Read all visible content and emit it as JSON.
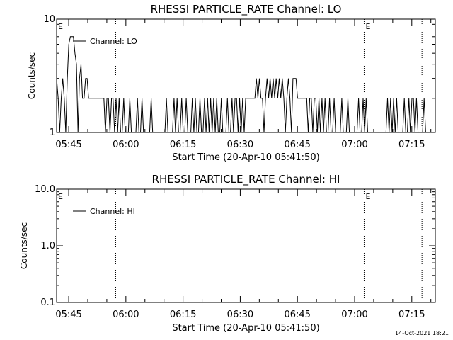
{
  "chart_data": [
    {
      "type": "line",
      "title": "RHESSI PARTICLE_RATE Channel: LO",
      "xlabel": "Start Time (20-Apr-10 05:41:50)",
      "ylabel": "Counts/sec",
      "y_scale": "log",
      "ylim": [
        1,
        10
      ],
      "y_ticks": [
        "1",
        "10"
      ],
      "xlim": [
        "05:41:50",
        "07:21:10"
      ],
      "x_ticks": [
        "05:45",
        "06:00",
        "06:15",
        "06:30",
        "06:45",
        "07:00",
        "07:15"
      ],
      "legend": "top-left",
      "grid": false,
      "vlines": [
        "05:57:20",
        "07:02:30",
        "07:17:40"
      ],
      "markers": [
        {
          "label": "E",
          "time": "05:41:50"
        },
        {
          "label": "E",
          "time": "07:02:30"
        }
      ],
      "series": [
        {
          "name": "Channel: LO",
          "points": [
            [
              "05:41:50",
              3
            ],
            [
              "05:42:14",
              2
            ],
            [
              "05:42:38",
              1
            ],
            [
              "05:43:02",
              2
            ],
            [
              "05:43:26",
              3
            ],
            [
              "05:43:50",
              2
            ],
            [
              "05:44:14",
              1
            ],
            [
              "05:44:38",
              3
            ],
            [
              "05:45:02",
              6
            ],
            [
              "05:45:26",
              7
            ],
            [
              "05:45:50",
              7
            ],
            [
              "05:46:14",
              7
            ],
            [
              "05:46:38",
              5
            ],
            [
              "05:47:02",
              4
            ],
            [
              "05:47:26",
              1
            ],
            [
              "05:47:50",
              3
            ],
            [
              "05:48:14",
              4
            ],
            [
              "05:48:38",
              2
            ],
            [
              "05:49:02",
              2
            ],
            [
              "05:49:26",
              3
            ],
            [
              "05:49:50",
              3
            ],
            [
              "05:50:14",
              2
            ],
            [
              "05:50:38",
              2
            ],
            [
              "05:51:02",
              2
            ],
            [
              "05:51:26",
              2
            ],
            [
              "05:51:50",
              2
            ],
            [
              "05:52:14",
              2
            ],
            [
              "05:52:38",
              2
            ],
            [
              "05:53:02",
              2
            ],
            [
              "05:53:26",
              2
            ],
            [
              "05:53:50",
              2
            ],
            [
              "05:54:14",
              2
            ],
            [
              "05:54:38",
              1
            ],
            [
              "05:55:02",
              2
            ],
            [
              "05:55:26",
              2
            ],
            [
              "05:55:50",
              1
            ],
            [
              "05:56:14",
              2
            ],
            [
              "05:56:38",
              2
            ],
            [
              "05:57:02",
              1
            ],
            [
              "05:57:26",
              2
            ],
            [
              "05:57:50",
              1
            ],
            [
              "05:58:14",
              2
            ],
            [
              "05:58:38",
              1
            ],
            [
              "05:59:02",
              1
            ],
            [
              "05:59:26",
              2
            ],
            [
              "05:59:50",
              1
            ],
            [
              "06:00:14",
              1
            ],
            [
              "06:00:38",
              1
            ],
            [
              "06:01:02",
              2
            ],
            [
              "06:01:26",
              1
            ],
            [
              "06:01:50",
              1
            ],
            [
              "06:02:14",
              1
            ],
            [
              "06:02:38",
              1
            ],
            [
              "06:03:02",
              2
            ],
            [
              "06:03:26",
              1
            ],
            [
              "06:03:50",
              1
            ],
            [
              "06:04:14",
              2
            ],
            [
              "06:04:38",
              1
            ],
            [
              "06:05:02",
              1
            ],
            [
              "06:05:26",
              1
            ],
            [
              "06:05:50",
              1
            ],
            [
              "06:06:14",
              1
            ],
            [
              "06:06:38",
              2
            ],
            [
              "06:07:02",
              1
            ],
            [
              "06:07:26",
              1
            ],
            [
              "06:07:50",
              1
            ],
            [
              "06:08:14",
              1
            ],
            [
              "06:08:38",
              1
            ],
            [
              "06:09:02",
              1
            ],
            [
              "06:09:26",
              1
            ],
            [
              "06:09:50",
              1
            ],
            [
              "06:10:14",
              1
            ],
            [
              "06:10:38",
              2
            ],
            [
              "06:11:02",
              1
            ],
            [
              "06:11:26",
              1
            ],
            [
              "06:11:50",
              1
            ],
            [
              "06:12:14",
              1
            ],
            [
              "06:12:38",
              2
            ],
            [
              "06:13:02",
              1
            ],
            [
              "06:13:26",
              2
            ],
            [
              "06:13:50",
              1
            ],
            [
              "06:14:14",
              1
            ],
            [
              "06:14:38",
              2
            ],
            [
              "06:15:02",
              1
            ],
            [
              "06:15:26",
              1
            ],
            [
              "06:15:50",
              2
            ],
            [
              "06:16:14",
              1
            ],
            [
              "06:16:38",
              1
            ],
            [
              "06:17:02",
              1
            ],
            [
              "06:17:26",
              2
            ],
            [
              "06:17:50",
              1
            ],
            [
              "06:18:14",
              2
            ],
            [
              "06:18:38",
              1
            ],
            [
              "06:19:02",
              1
            ],
            [
              "06:19:26",
              2
            ],
            [
              "06:19:50",
              1
            ],
            [
              "06:20:14",
              1
            ],
            [
              "06:20:38",
              2
            ],
            [
              "06:21:02",
              1
            ],
            [
              "06:21:26",
              2
            ],
            [
              "06:21:50",
              1
            ],
            [
              "06:22:14",
              2
            ],
            [
              "06:22:38",
              1
            ],
            [
              "06:23:02",
              2
            ],
            [
              "06:23:26",
              1
            ],
            [
              "06:23:50",
              2
            ],
            [
              "06:24:14",
              1
            ],
            [
              "06:24:38",
              1
            ],
            [
              "06:25:02",
              2
            ],
            [
              "06:25:26",
              1
            ],
            [
              "06:25:50",
              1
            ],
            [
              "06:26:14",
              1
            ],
            [
              "06:26:38",
              2
            ],
            [
              "06:27:02",
              1
            ],
            [
              "06:27:26",
              1
            ],
            [
              "06:27:50",
              2
            ],
            [
              "06:28:14",
              1
            ],
            [
              "06:28:38",
              2
            ],
            [
              "06:29:02",
              2
            ],
            [
              "06:29:26",
              1
            ],
            [
              "06:29:50",
              2
            ],
            [
              "06:30:14",
              1
            ],
            [
              "06:30:38",
              2
            ],
            [
              "06:31:02",
              1
            ],
            [
              "06:31:26",
              2
            ],
            [
              "06:31:50",
              2
            ],
            [
              "06:32:14",
              2
            ],
            [
              "06:32:38",
              2
            ],
            [
              "06:33:02",
              2
            ],
            [
              "06:33:26",
              2
            ],
            [
              "06:33:50",
              2
            ],
            [
              "06:34:14",
              3
            ],
            [
              "06:34:38",
              2
            ],
            [
              "06:35:02",
              3
            ],
            [
              "06:35:26",
              2
            ],
            [
              "06:35:50",
              2
            ],
            [
              "06:36:14",
              1
            ],
            [
              "06:36:38",
              2
            ],
            [
              "06:37:02",
              3
            ],
            [
              "06:37:26",
              2
            ],
            [
              "06:37:50",
              3
            ],
            [
              "06:38:14",
              2
            ],
            [
              "06:38:38",
              3
            ],
            [
              "06:39:02",
              2
            ],
            [
              "06:39:26",
              3
            ],
            [
              "06:39:50",
              2
            ],
            [
              "06:40:14",
              3
            ],
            [
              "06:40:38",
              2
            ],
            [
              "06:41:02",
              3
            ],
            [
              "06:41:26",
              2
            ],
            [
              "06:41:50",
              1
            ],
            [
              "06:42:14",
              2
            ],
            [
              "06:42:38",
              3
            ],
            [
              "06:43:02",
              2
            ],
            [
              "06:43:26",
              1
            ],
            [
              "06:43:50",
              3
            ],
            [
              "06:44:14",
              3
            ],
            [
              "06:44:38",
              3
            ],
            [
              "06:45:02",
              2
            ],
            [
              "06:45:26",
              2
            ],
            [
              "06:45:50",
              2
            ],
            [
              "06:46:14",
              2
            ],
            [
              "06:46:38",
              2
            ],
            [
              "06:47:02",
              2
            ],
            [
              "06:47:26",
              2
            ],
            [
              "06:47:50",
              1
            ],
            [
              "06:48:14",
              2
            ],
            [
              "06:48:38",
              2
            ],
            [
              "06:49:02",
              1
            ],
            [
              "06:49:26",
              2
            ],
            [
              "06:49:50",
              2
            ],
            [
              "06:50:14",
              1
            ],
            [
              "06:50:38",
              2
            ],
            [
              "06:51:02",
              1
            ],
            [
              "06:51:26",
              2
            ],
            [
              "06:51:50",
              1
            ],
            [
              "06:52:14",
              2
            ],
            [
              "06:52:38",
              1
            ],
            [
              "06:53:02",
              1
            ],
            [
              "06:53:26",
              2
            ],
            [
              "06:53:50",
              1
            ],
            [
              "06:54:14",
              1
            ],
            [
              "06:54:38",
              2
            ],
            [
              "06:55:02",
              1
            ],
            [
              "06:55:26",
              1
            ],
            [
              "06:55:50",
              1
            ],
            [
              "06:56:14",
              1
            ],
            [
              "06:56:38",
              2
            ],
            [
              "06:57:02",
              1
            ],
            [
              "06:57:26",
              1
            ],
            [
              "06:57:50",
              1
            ],
            [
              "06:58:14",
              2
            ],
            [
              "06:58:38",
              1
            ],
            [
              "06:59:02",
              1
            ],
            [
              "06:59:26",
              1
            ],
            [
              "06:59:50",
              1
            ],
            [
              "07:00:14",
              1
            ],
            [
              "07:00:38",
              1
            ],
            [
              "07:01:02",
              2
            ],
            [
              "07:01:26",
              1
            ],
            [
              "07:01:50",
              1
            ],
            [
              "07:02:14",
              2
            ],
            [
              "07:02:38",
              1
            ],
            [
              "07:03:02",
              2
            ],
            [
              "07:03:26",
              1
            ],
            [
              "07:03:50",
              1
            ],
            [
              "07:04:14",
              1
            ],
            [
              "07:04:38",
              1
            ],
            [
              "07:05:02",
              1
            ],
            [
              "07:05:26",
              1
            ],
            [
              "07:05:50",
              1
            ],
            [
              "07:06:14",
              1
            ],
            [
              "07:06:38",
              1
            ],
            [
              "07:07:02",
              1
            ],
            [
              "07:07:26",
              1
            ],
            [
              "07:07:50",
              1
            ],
            [
              "07:08:14",
              1
            ],
            [
              "07:08:38",
              2
            ],
            [
              "07:09:02",
              1
            ],
            [
              "07:09:26",
              2
            ],
            [
              "07:09:50",
              1
            ],
            [
              "07:10:14",
              2
            ],
            [
              "07:10:38",
              1
            ],
            [
              "07:11:02",
              2
            ],
            [
              "07:11:26",
              1
            ],
            [
              "07:11:50",
              1
            ],
            [
              "07:12:14",
              1
            ],
            [
              "07:12:38",
              1
            ],
            [
              "07:13:02",
              2
            ],
            [
              "07:13:26",
              1
            ],
            [
              "07:13:50",
              1
            ],
            [
              "07:14:14",
              2
            ],
            [
              "07:14:38",
              1
            ],
            [
              "07:15:02",
              2
            ],
            [
              "07:15:26",
              2
            ],
            [
              "07:15:50",
              1
            ],
            [
              "07:16:14",
              2
            ],
            [
              "07:16:38",
              1
            ],
            [
              "07:17:02",
              1
            ],
            [
              "07:17:26",
              1
            ],
            [
              "07:17:50",
              1
            ],
            [
              "07:18:14",
              2
            ],
            [
              "07:18:38",
              1
            ],
            [
              "07:19:02",
              1
            ],
            [
              "07:19:26",
              1
            ],
            [
              "07:19:50",
              1
            ],
            [
              "07:20:14",
              1
            ],
            [
              "07:20:38",
              1
            ]
          ]
        }
      ]
    },
    {
      "type": "line",
      "title": "RHESSI PARTICLE_RATE Channel: HI",
      "xlabel": "Start Time (20-Apr-10 05:41:50)",
      "ylabel": "Counts/sec",
      "y_scale": "log",
      "ylim": [
        0.1,
        10
      ],
      "y_ticks": [
        "0.1",
        "1.0",
        "10.0"
      ],
      "xlim": [
        "05:41:50",
        "07:21:10"
      ],
      "x_ticks": [
        "05:45",
        "06:00",
        "06:15",
        "06:30",
        "06:45",
        "07:00",
        "07:15"
      ],
      "legend": "top-left",
      "grid": false,
      "vlines": [
        "05:57:20",
        "07:02:30",
        "07:17:40"
      ],
      "markers": [
        {
          "label": "E",
          "time": "05:41:50"
        },
        {
          "label": "E",
          "time": "07:02:30"
        }
      ],
      "series": [
        {
          "name": "Channel: HI",
          "points": []
        }
      ]
    }
  ],
  "footer": {
    "timestamp": "14-Oct-2021 18:21"
  }
}
